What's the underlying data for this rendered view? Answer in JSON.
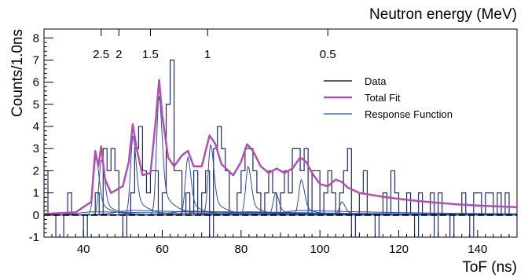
{
  "chart_data": {
    "type": "line",
    "title": "",
    "xlabel": "ToF (ns)",
    "ylabel": "Counts/1.0ns",
    "x2label": "Neutron energy (MeV)",
    "xlim": [
      30,
      150
    ],
    "ylim": [
      -1,
      8.4
    ],
    "x_ticks": [
      40,
      60,
      80,
      100,
      120,
      140
    ],
    "y_ticks": [
      -1,
      0,
      1,
      2,
      3,
      4,
      5,
      6,
      7,
      8
    ],
    "energy_ticks": [
      {
        "label": "2.5",
        "tof": 44.5
      },
      {
        "label": "2",
        "tof": 49
      },
      {
        "label": "1.5",
        "tof": 57
      },
      {
        "label": "1",
        "tof": 71.5
      },
      {
        "label": "0.5",
        "tof": 102
      }
    ],
    "legend": {
      "position": "top-right",
      "entries": [
        {
          "label": "Data",
          "color": "#000000"
        },
        {
          "label": "Total Fit",
          "color": "#b050b0"
        },
        {
          "label": "Response Function",
          "color": "#2a4ea0"
        }
      ]
    },
    "colors": {
      "data": "#1e2a6e",
      "total_fit": "#b050b0",
      "response": "#2a4ea0",
      "baseline": "#000000"
    },
    "series": [
      {
        "name": "Data",
        "type": "histogram",
        "bin_width_ns": 1.0,
        "x_start": 30,
        "values": [
          2,
          0,
          0,
          -1,
          -1,
          0,
          1,
          0,
          0,
          0,
          -1,
          0,
          0,
          1,
          0,
          3,
          2,
          3,
          2,
          0,
          -1,
          0,
          1,
          3,
          4,
          2,
          1,
          2,
          2,
          0,
          1,
          5,
          7,
          2,
          2,
          0,
          1,
          0,
          2,
          0,
          1,
          2,
          -1,
          3,
          4,
          3,
          2,
          0,
          0,
          1,
          2,
          3,
          3,
          2,
          1,
          0,
          1,
          2,
          1,
          0,
          1,
          2,
          1,
          3,
          3,
          2,
          3,
          0,
          2,
          2,
          0,
          1,
          2,
          1,
          0,
          1,
          2,
          3,
          -1,
          0,
          1,
          2,
          0,
          0,
          -1,
          0,
          1,
          0,
          2,
          1,
          0,
          0,
          1,
          0,
          -1,
          1,
          0,
          0,
          1,
          -1,
          1,
          0,
          0,
          -1,
          0,
          0,
          1,
          0,
          -1,
          1,
          1,
          0,
          1,
          1,
          0,
          1,
          0,
          1,
          0,
          0
        ]
      },
      {
        "name": "Total Fit",
        "type": "curve",
        "points": [
          [
            30,
            0.05
          ],
          [
            38,
            0.12
          ],
          [
            42,
            0.6
          ],
          [
            43,
            2.9
          ],
          [
            43.8,
            2.2
          ],
          [
            44.5,
            3.1
          ],
          [
            45.5,
            1.6
          ],
          [
            47,
            1.0
          ],
          [
            50,
            1.3
          ],
          [
            51.5,
            2.4
          ],
          [
            52.5,
            4.1
          ],
          [
            53.5,
            3.0
          ],
          [
            55,
            1.8
          ],
          [
            57,
            1.9
          ],
          [
            58.3,
            4.2
          ],
          [
            59.2,
            6.1
          ],
          [
            60,
            4.5
          ],
          [
            61.5,
            2.6
          ],
          [
            63,
            2.2
          ],
          [
            65,
            2.7
          ],
          [
            66.5,
            2.9
          ],
          [
            68,
            2.2
          ],
          [
            70,
            2.2
          ],
          [
            72,
            3.6
          ],
          [
            73.5,
            3.2
          ],
          [
            75,
            2.3
          ],
          [
            78,
            1.8
          ],
          [
            80,
            2.4
          ],
          [
            81.5,
            3.2
          ],
          [
            83,
            2.9
          ],
          [
            85,
            2.2
          ],
          [
            87,
            1.9
          ],
          [
            89,
            2.1
          ],
          [
            91,
            1.9
          ],
          [
            93,
            2.1
          ],
          [
            95,
            2.6
          ],
          [
            96.5,
            2.4
          ],
          [
            98,
            1.9
          ],
          [
            100,
            1.4
          ],
          [
            102,
            1.3
          ],
          [
            104,
            1.6
          ],
          [
            105.5,
            1.5
          ],
          [
            107,
            1.25
          ],
          [
            110,
            1.0
          ],
          [
            115,
            0.85
          ],
          [
            120,
            0.73
          ],
          [
            125,
            0.63
          ],
          [
            130,
            0.55
          ],
          [
            135,
            0.48
          ],
          [
            140,
            0.43
          ],
          [
            145,
            0.39
          ],
          [
            150,
            0.36
          ]
        ]
      },
      {
        "name": "Response Function",
        "type": "peaks",
        "peaks": [
          {
            "center": 43.2,
            "height": 2.6
          },
          {
            "center": 44.6,
            "height": 2.5
          },
          {
            "center": 52.6,
            "height": 3.6
          },
          {
            "center": 59.2,
            "height": 5.4
          },
          {
            "center": 66.5,
            "height": 2.6
          },
          {
            "center": 72.3,
            "height": 3.2
          },
          {
            "center": 81.8,
            "height": 2.2
          },
          {
            "center": 88.8,
            "height": 1.0
          },
          {
            "center": 95.3,
            "height": 1.6
          },
          {
            "center": 105.6,
            "height": 0.6
          }
        ]
      }
    ]
  }
}
